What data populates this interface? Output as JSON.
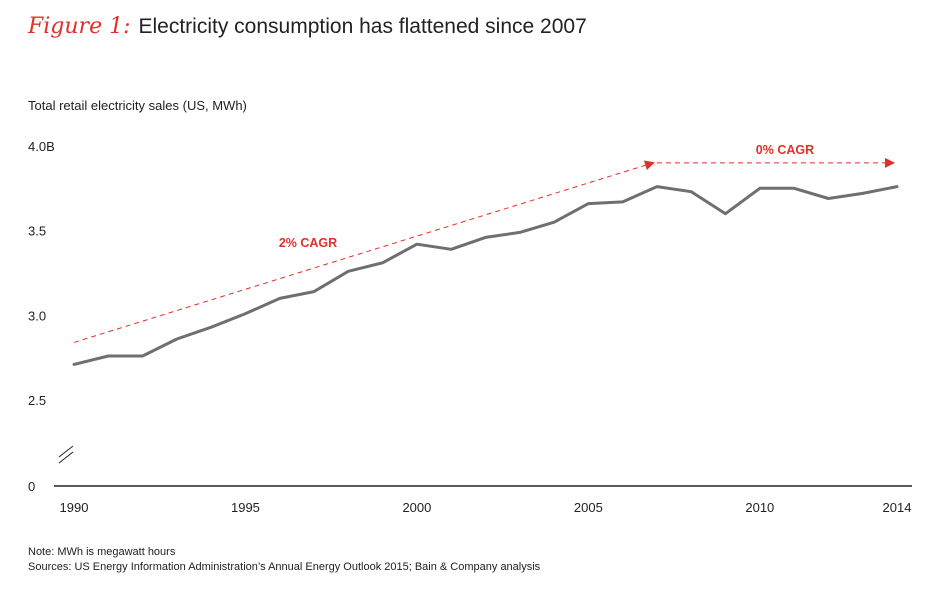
{
  "header": {
    "figure_label": "Figure 1:",
    "title": "Electricity consumption has flattened since 2007"
  },
  "colors": {
    "accent": "#e03028",
    "line": "#6f6f73",
    "axis": "#222222"
  },
  "chart_data": {
    "type": "line",
    "title": "Electricity consumption has flattened since 2007",
    "ylabel": "Total retail electricity sales (US, MWh)",
    "xlabel": "",
    "x_ticks": [
      "1990",
      "1995",
      "2000",
      "2005",
      "2010",
      "2014"
    ],
    "y_ticks": [
      "0",
      "2.5",
      "3.0",
      "3.5",
      "4.0B"
    ],
    "y_axis_break": true,
    "ylim_display": [
      2.5,
      4.0
    ],
    "xlim": [
      1990,
      2014
    ],
    "series": [
      {
        "name": "Total retail electricity sales",
        "x": [
          1990,
          1991,
          1992,
          1993,
          1994,
          1995,
          1996,
          1997,
          1998,
          1999,
          2000,
          2001,
          2002,
          2003,
          2004,
          2005,
          2006,
          2007,
          2008,
          2009,
          2010,
          2011,
          2012,
          2013,
          2014
        ],
        "values": [
          2.71,
          2.76,
          2.76,
          2.86,
          2.93,
          3.01,
          3.1,
          3.14,
          3.26,
          3.31,
          3.42,
          3.39,
          3.46,
          3.49,
          3.55,
          3.66,
          3.67,
          3.76,
          3.73,
          3.6,
          3.75,
          3.75,
          3.69,
          3.72,
          3.76
        ]
      }
    ],
    "annotations": [
      {
        "label": "2% CAGR",
        "from": [
          1990,
          2.84
        ],
        "to": [
          2007,
          3.9
        ],
        "style": "dashed-arrow"
      },
      {
        "label": "0% CAGR",
        "from": [
          2007,
          3.9
        ],
        "to": [
          2014,
          3.9
        ],
        "style": "dashed-arrow"
      }
    ]
  },
  "footer": {
    "note": "Note: MWh is megawatt hours",
    "sources": "Sources: US Energy Information Administration’s Annual Energy Outlook 2015; Bain & Company analysis"
  }
}
